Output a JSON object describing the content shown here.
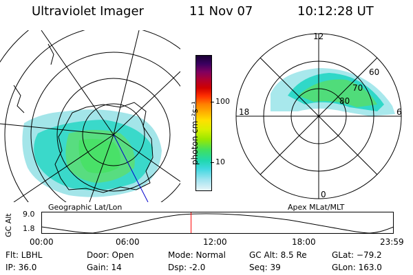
{
  "header": {
    "instrument": "Ultraviolet Imager",
    "date": "11 Nov 07",
    "time": "10:12:28 UT"
  },
  "left_map": {
    "caption": "Geographic Lat/Lon"
  },
  "right_map": {
    "caption": "Apex MLat/MLT",
    "mlt_labels": {
      "top": "12",
      "left": "18",
      "right": "6",
      "bottom": "0"
    },
    "lat_labels": [
      "60",
      "70",
      "80"
    ]
  },
  "colorbar": {
    "unit_label": "photon cm⁻²s⁻¹",
    "tick_high": "100",
    "tick_low": "10",
    "colors": [
      "#1a0033",
      "#3a0060",
      "#800060",
      "#b00030",
      "#d00000",
      "#ff3000",
      "#ff8000",
      "#ffb000",
      "#ffe000",
      "#d8f000",
      "#9ae800",
      "#40e060",
      "#20d8b0",
      "#40d8e0",
      "#a0e4f0",
      "#e8f4f8"
    ]
  },
  "altitude_plot": {
    "ylabel": "GC Alt",
    "y_high": "9.0",
    "y_low": "1.8",
    "time_ticks": [
      "00:00",
      "06:00",
      "12:00",
      "18:00",
      "23:59"
    ],
    "current_time_fraction": 0.425
  },
  "info": {
    "flt": "Flt: LBHL",
    "ip": "IP: 36.0",
    "door": "Door: Open",
    "gain": "Gain: 14",
    "mode": "Mode: Normal",
    "dsp": "Dsp:    -2.0",
    "gc_alt": "GC Alt: 8.5 Re",
    "seq": "Seq: 39",
    "glat": "GLat: −79.2",
    "glon": "GLon: 163.0"
  },
  "colors": {
    "aurora_green": "#40e060",
    "aurora_cyan": "#30d8c8",
    "time_marker": "#ff0000",
    "meridian_blue": "#0000cc"
  }
}
